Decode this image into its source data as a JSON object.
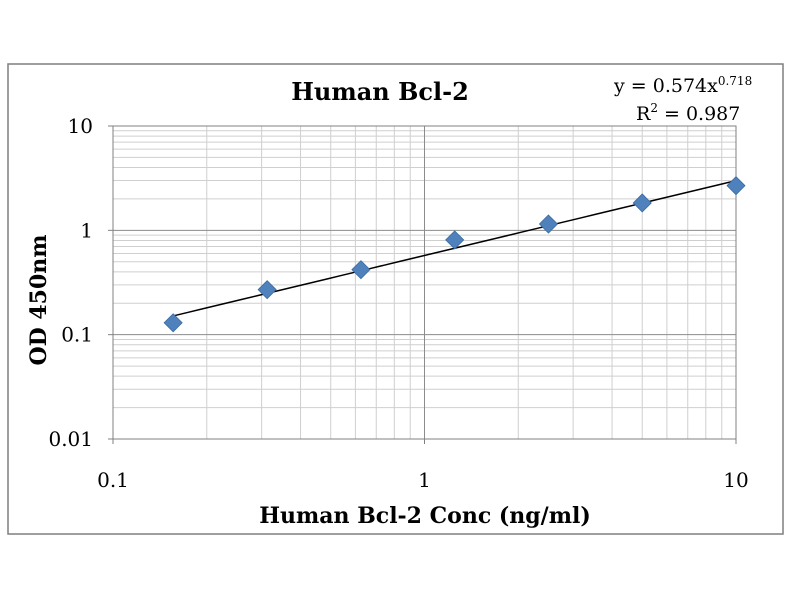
{
  "chart_data": {
    "type": "scatter",
    "title": "Human Bcl-2",
    "xlabel": "Human Bcl-2 Conc (ng/ml)",
    "ylabel": "OD 450nm",
    "x_scale": "log",
    "y_scale": "log",
    "xlim": [
      0.1,
      10
    ],
    "ylim": [
      0.01,
      10
    ],
    "x_ticks": [
      "0.1",
      "1",
      "10"
    ],
    "y_ticks": [
      "0.01",
      "0.1",
      "1",
      "10"
    ],
    "grid": true,
    "legend": "none",
    "series": [
      {
        "x": [
          0.156,
          0.3125,
          0.625,
          1.25,
          2.5,
          5,
          10
        ],
        "y": [
          0.13,
          0.27,
          0.42,
          0.81,
          1.15,
          1.83,
          2.68
        ],
        "marker": "diamond",
        "color": "#4f81bd"
      }
    ],
    "trendline": {
      "type": "power",
      "a": 0.574,
      "b": 0.718,
      "color": "#000000",
      "equation_lead": "y = 0.574x",
      "equation_exp": "0.718",
      "r2_lead": "R",
      "r2_exp": "2",
      "r2_rest": " = 0.987"
    }
  }
}
